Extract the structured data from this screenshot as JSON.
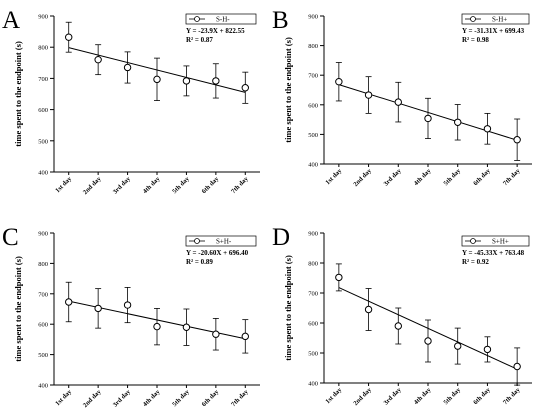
{
  "chart_data": [
    {
      "panel": "A",
      "type": "scatter",
      "categories": [
        "1st day",
        "2nd day",
        "3rd day",
        "4th day",
        "5th day",
        "6th day",
        "7th day"
      ],
      "ylabel": "time spent to the endpoint (s)",
      "ylim": [
        400,
        900
      ],
      "yticks": [
        400,
        500,
        600,
        700,
        800,
        900
      ],
      "grid": false,
      "legend": "top-right",
      "series": [
        {
          "name": "S-H-",
          "values": [
            832,
            760,
            735,
            697,
            692,
            692,
            670
          ],
          "err": [
            48,
            48,
            50,
            68,
            48,
            55,
            50
          ]
        }
      ],
      "fit": {
        "slope": -23.9,
        "intercept": 822.55
      },
      "equation": "Y = -23.9X + 822.55",
      "r2": "R² = 0.87"
    },
    {
      "panel": "B",
      "type": "scatter",
      "categories": [
        "1st day",
        "2nd day",
        "3rd day",
        "4th day",
        "5th day",
        "6th day",
        "7th day"
      ],
      "ylabel": "time spent to the endpoint (s)",
      "ylim": [
        400,
        900
      ],
      "yticks": [
        400,
        500,
        600,
        700,
        800,
        900
      ],
      "grid": false,
      "legend": "top-right",
      "series": [
        {
          "name": "S-H+",
          "values": [
            678,
            633,
            609,
            554,
            541,
            519,
            482
          ],
          "err": [
            65,
            62,
            67,
            68,
            60,
            52,
            70
          ]
        }
      ],
      "fit": {
        "slope": -31.31,
        "intercept": 699.43
      },
      "equation": "Y = -31.31X + 699.43",
      "r2": "R² = 0.98"
    },
    {
      "panel": "C",
      "type": "scatter",
      "categories": [
        "1st day",
        "2nd day",
        "3rd day",
        "4th day",
        "5th day",
        "6th day",
        "7th day"
      ],
      "ylabel": "time spent to the endpoint (s)",
      "ylim": [
        400,
        900
      ],
      "yticks": [
        400,
        500,
        600,
        700,
        800,
        900
      ],
      "grid": false,
      "legend": "top-right",
      "series": [
        {
          "name": "S+H-",
          "values": [
            673,
            652,
            663,
            592,
            590,
            567,
            560
          ],
          "err": [
            65,
            65,
            58,
            60,
            60,
            52,
            55
          ]
        }
      ],
      "fit": {
        "slope": -20.6,
        "intercept": 696.4
      },
      "equation": "Y = -20.60X + 696.40",
      "r2": "R² = 0.89"
    },
    {
      "panel": "D",
      "type": "scatter",
      "categories": [
        "1st day",
        "2nd day",
        "3rd day",
        "4th day",
        "5th day",
        "6th day",
        "7th day"
      ],
      "ylabel": "time spent to the endpoint (s)",
      "ylim": [
        400,
        900
      ],
      "yticks": [
        400,
        500,
        600,
        700,
        800,
        900
      ],
      "grid": false,
      "legend": "top-right",
      "series": [
        {
          "name": "S+H+",
          "values": [
            752,
            645,
            590,
            540,
            523,
            512,
            455
          ],
          "err": [
            45,
            70,
            60,
            70,
            60,
            42,
            62
          ]
        }
      ],
      "fit": {
        "slope": -45.33,
        "intercept": 763.48
      },
      "equation": "Y = -45.33X + 763.48",
      "r2": "R² = 0.92"
    }
  ]
}
